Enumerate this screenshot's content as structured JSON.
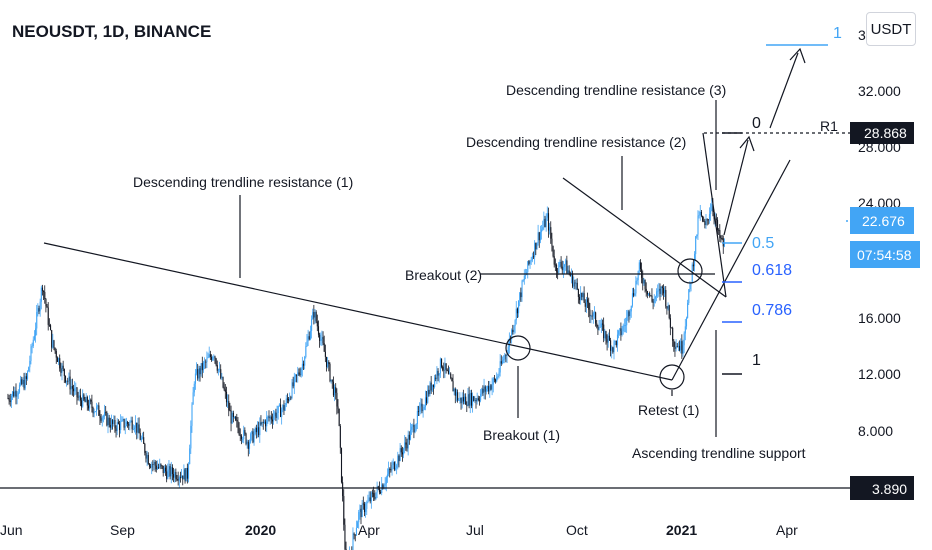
{
  "header": {
    "title": "NEOUSDT, 1D, BINANCE",
    "currency": "USDT"
  },
  "colors": {
    "up": "#42a5f5",
    "down": "#131722",
    "line": "#131722",
    "fib_blue": "#2962ff",
    "fib_light": "#42a5f5",
    "price_bg": "#131722",
    "current_bg": "#42a5f5"
  },
  "chart_data": {
    "type": "candlestick",
    "x_ticks": [
      "Jun",
      "Sep",
      "2020",
      "Apr",
      "Jul",
      "Oct",
      "2021",
      "Apr"
    ],
    "y_ticks": [
      "32.000",
      "24.000",
      "16.000",
      "12.000",
      "8.000"
    ],
    "y_scale": "log",
    "price_labels": {
      "partial_top": "3",
      "high_line": "28.868",
      "partial_high": "28.000",
      "current": "22.676",
      "countdown": "07:54:58",
      "low_line": "3.890"
    },
    "levels": {
      "high": 28.868,
      "low": 3.89,
      "current": 22.676
    },
    "annotations": [
      "Descending trendline resistance (1)",
      "Descending trendline resistance (2)",
      "Descending trendline resistance (3)",
      "Breakout (1)",
      "Breakout (2)",
      "Retest (1)",
      "Ascending trendline support",
      "R1"
    ],
    "fib_levels": [
      {
        "label": "1",
        "tone": "light"
      },
      {
        "label": "0",
        "tone": "black"
      },
      {
        "label": "0.5",
        "tone": "light"
      },
      {
        "label": "0.618",
        "tone": "blue"
      },
      {
        "label": "0.786",
        "tone": "blue"
      },
      {
        "label": "1",
        "tone": "black"
      }
    ],
    "price_path": [
      [
        "2019-05-25",
        10.5
      ],
      [
        "2019-06-10",
        11.5
      ],
      [
        "2019-06-24",
        18.8
      ],
      [
        "2019-07-02",
        14.0
      ],
      [
        "2019-07-12",
        12.0
      ],
      [
        "2019-07-25",
        10.5
      ],
      [
        "2019-08-10",
        9.9
      ],
      [
        "2019-08-25",
        9.1
      ],
      [
        "2019-09-12",
        9.3
      ],
      [
        "2019-09-25",
        7.6
      ],
      [
        "2019-10-10",
        7.2
      ],
      [
        "2019-10-28",
        7.1
      ],
      [
        "2019-11-03",
        11.6
      ],
      [
        "2019-11-20",
        13.3
      ],
      [
        "2019-12-05",
        9.5
      ],
      [
        "2019-12-20",
        8.4
      ],
      [
        "2020-01-05",
        9.4
      ],
      [
        "2020-01-20",
        10.0
      ],
      [
        "2020-02-05",
        12.5
      ],
      [
        "2020-02-15",
        16.3
      ],
      [
        "2020-02-25",
        13.0
      ],
      [
        "2020-03-07",
        10.0
      ],
      [
        "2020-03-14",
        4.4
      ],
      [
        "2020-03-25",
        5.8
      ],
      [
        "2020-04-15",
        6.8
      ],
      [
        "2020-05-05",
        8.3
      ],
      [
        "2020-05-25",
        10.9
      ],
      [
        "2020-06-05",
        12.6
      ],
      [
        "2020-06-20",
        10.4
      ],
      [
        "2020-07-05",
        10.5
      ],
      [
        "2020-07-22",
        11.5
      ],
      [
        "2020-08-02",
        13.7
      ],
      [
        "2020-08-15",
        19.0
      ],
      [
        "2020-08-28",
        24.0
      ],
      [
        "2020-09-05",
        26.3
      ],
      [
        "2020-09-12",
        20.5
      ],
      [
        "2020-09-20",
        20.8
      ],
      [
        "2020-10-05",
        17.5
      ],
      [
        "2020-10-20",
        15.2
      ],
      [
        "2020-11-01",
        13.6
      ],
      [
        "2020-11-12",
        15.4
      ],
      [
        "2020-11-24",
        20.3
      ],
      [
        "2020-12-05",
        17.2
      ],
      [
        "2020-12-15",
        18.5
      ],
      [
        "2020-12-24",
        14.0
      ],
      [
        "2020-12-31",
        13.6
      ],
      [
        "2021-01-07",
        18.5
      ],
      [
        "2021-01-15",
        27.0
      ],
      [
        "2021-01-20",
        25.0
      ],
      [
        "2021-01-26",
        28.5
      ],
      [
        "2021-02-01",
        24.0
      ],
      [
        "2021-02-06",
        22.7
      ]
    ]
  }
}
